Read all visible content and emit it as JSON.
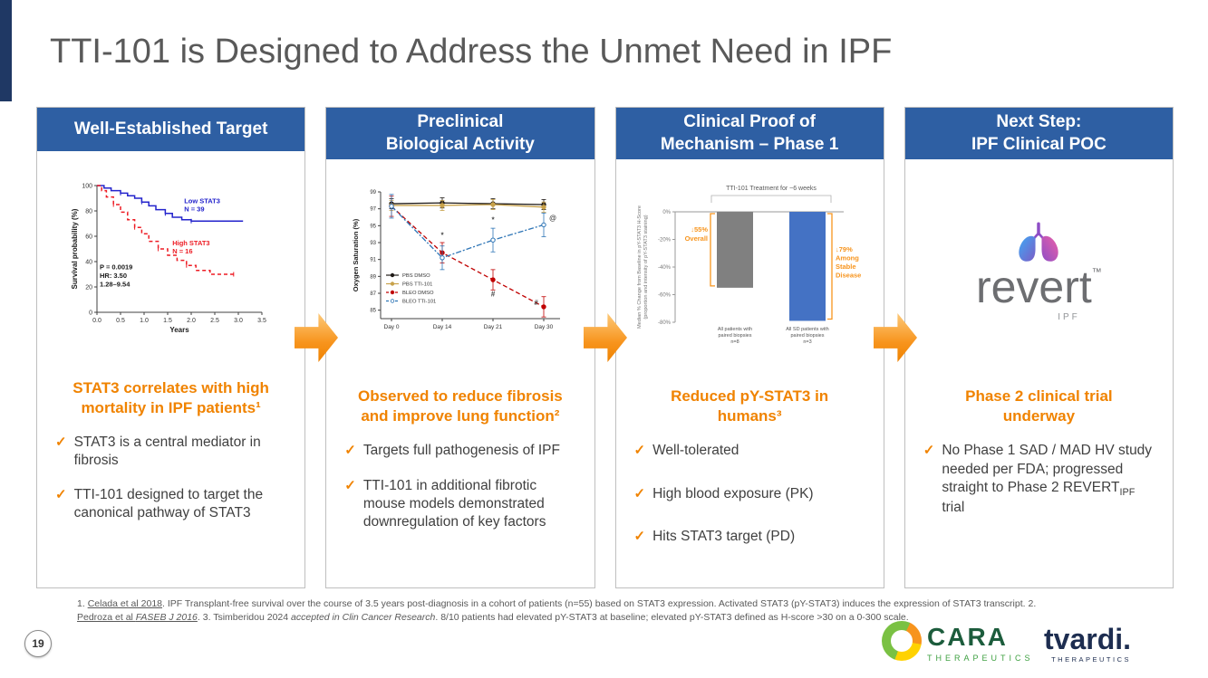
{
  "slide": {
    "title": "TTI-101 is Designed to Address the Unmet Need in IPF",
    "page_number": "19"
  },
  "icons": {
    "check": "✓"
  },
  "colors": {
    "header_blue": "#2E5FA3",
    "accent_orange": "#F08300",
    "navy_accent": "#1F3864",
    "bar_gray": "#808080",
    "bar_blue": "#4472C4"
  },
  "columns": [
    {
      "header": "Well-Established Target",
      "heading": "STAT3 correlates with high\nmortality in IPF patients¹",
      "bullets": [
        "STAT3 is a central mediator in fibrosis",
        "TTI-101 designed to target the canonical pathway of STAT3"
      ]
    },
    {
      "header": "Preclinical\nBiological Activity",
      "heading": "Observed to reduce fibrosis\nand improve lung function²",
      "bullets": [
        "Targets full pathogenesis of IPF",
        "TTI-101 in additional fibrotic mouse models demonstrated downregulation of key factors"
      ]
    },
    {
      "header": "Clinical Proof of\nMechanism – Phase 1",
      "heading": "Reduced pY-STAT3 in\nhumans³",
      "bullets": [
        "Well-tolerated",
        "High blood exposure (PK)",
        "Hits STAT3 target (PD)"
      ]
    },
    {
      "header": "Next Step:\nIPF Clinical POC",
      "heading": "Phase 2 clinical trial\nunderway",
      "bullet_rich": {
        "pre": "No Phase 1 SAD / MAD HV study needed per FDA; progressed straight to Phase 2 REVERT",
        "sub": "IPF",
        "post": " trial"
      }
    }
  ],
  "footnote": {
    "seg1": "1. ",
    "seg2": "Celada et al 2018",
    "seg3": ". IPF Transplant-free survival over the course of 3.5 years post-diagnosis in a cohort of patients (n=55) based on STAT3 expression. Activated STAT3 (pY-STAT3) induces the expression of STAT3 transcript. 2. ",
    "seg4": "Pedroza et al ",
    "seg5": "FASEB J 2016",
    "seg6": ". 3. Tsimberidou 2024 ",
    "seg7": "accepted in Clin Cancer Research",
    "seg8": ". 8/10 patients had elevated pY-STAT3 at baseline; elevated pY-STAT3 defined as H-score >30 on a 0-300 scale."
  },
  "logos": {
    "revert": {
      "name": "revert",
      "tm": "™",
      "sub": "IPF"
    },
    "cara": {
      "name": "CARA",
      "sub": "THERAPEUTICS"
    },
    "tvardi": {
      "name": "tvardi.",
      "sub": "THERAPEUTICS"
    }
  },
  "chart_data": [
    {
      "type": "line",
      "subtype": "kaplan-meier",
      "xlabel": "Years",
      "ylabel": "Survival probability (%)",
      "xlim": [
        0,
        3.5
      ],
      "ylim": [
        0,
        100
      ],
      "xticks": [
        0,
        0.5,
        1,
        1.5,
        2,
        2.5,
        3,
        3.5
      ],
      "yticks": [
        0,
        20,
        40,
        60,
        80,
        100
      ],
      "annotation": "P = 0.0019\nHR: 3.50\n1.28–9.54",
      "annotation_at": 34,
      "series": [
        {
          "name": "Low STAT3",
          "label": "Low STAT3\nN = 39",
          "color": "#2323CC",
          "dash": null,
          "label_at": [
            1.85,
            86
          ],
          "points": [
            [
              0,
              100
            ],
            [
              0.15,
              98
            ],
            [
              0.3,
              96
            ],
            [
              0.5,
              94
            ],
            [
              0.65,
              92
            ],
            [
              0.8,
              90
            ],
            [
              0.95,
              87
            ],
            [
              1.1,
              84
            ],
            [
              1.25,
              81
            ],
            [
              1.45,
              78
            ],
            [
              1.6,
              75
            ],
            [
              1.8,
              73
            ],
            [
              2.0,
              72
            ],
            [
              3.1,
              72
            ]
          ]
        },
        {
          "name": "High STAT3",
          "label": "High STAT3\nN = 16",
          "color": "#ED1C24",
          "dash": "4,3",
          "label_at": [
            1.6,
            53
          ],
          "points": [
            [
              0,
              100
            ],
            [
              0.1,
              96
            ],
            [
              0.2,
              91
            ],
            [
              0.35,
              85
            ],
            [
              0.5,
              79
            ],
            [
              0.65,
              73
            ],
            [
              0.8,
              67
            ],
            [
              0.95,
              62
            ],
            [
              1.1,
              56
            ],
            [
              1.3,
              50
            ],
            [
              1.5,
              45
            ],
            [
              1.7,
              41
            ],
            [
              1.9,
              37
            ],
            [
              2.1,
              33
            ],
            [
              2.4,
              30
            ],
            [
              2.9,
              30
            ]
          ]
        }
      ]
    },
    {
      "type": "line",
      "ylabel": "Oxygen Saturation (%)",
      "x_categories": [
        "Day 0",
        "Day 14",
        "Day 21",
        "Day 30"
      ],
      "ylim": [
        84,
        99
      ],
      "yticks": [
        85,
        87,
        89,
        91,
        93,
        95,
        97,
        99
      ],
      "legend_position": "left-middle",
      "series": [
        {
          "name": "PBS DMSO",
          "color": "#1F1A17",
          "marker": "filled",
          "dash": null,
          "err": 0.6,
          "values": [
            97.6,
            97.7,
            97.6,
            97.5
          ]
        },
        {
          "name": "PBS TTI-101",
          "color": "#C8A24B",
          "marker": "filled",
          "dash": null,
          "err": 0.6,
          "values": [
            97.4,
            97.4,
            97.5,
            97.2
          ]
        },
        {
          "name": "BLEO DMSO",
          "color": "#C00000",
          "marker": "filled",
          "dash": "5,3",
          "err": 1.2,
          "values": [
            97.3,
            91.8,
            88.6,
            85.4
          ]
        },
        {
          "name": "BLEO TTI-101",
          "color": "#2E75B6",
          "marker": "open",
          "dash": "6,2,2,2",
          "err": 1.4,
          "values": [
            97.3,
            91.2,
            93.3,
            95.1
          ]
        }
      ],
      "annotations": [
        {
          "x": 1,
          "y": 93.6,
          "text": "*"
        },
        {
          "x": 2,
          "y": 95.4,
          "text": "*"
        },
        {
          "x": 2,
          "y": 86.6,
          "text": "#"
        },
        {
          "x": 2.85,
          "y": 85.6,
          "text": "#"
        },
        {
          "x": 3.18,
          "y": 95.6,
          "text": "@"
        }
      ]
    },
    {
      "type": "bar",
      "title": "TTI-101 Treatment for ~6 weeks",
      "ylabel": "Median % Change from Baseline in pY-STAT3 H-Score\n(proportion and intensity of pY-STAT3 staining)",
      "yticks": [
        0,
        -20,
        -40,
        -60,
        -80
      ],
      "yticks_labels": [
        "0%",
        "-20%",
        "-40%",
        "-60%",
        "-80%"
      ],
      "categories": [
        "All patients with\npaired biopsies\nn=8",
        "All SD patients with\npaired biopsies\nn=3"
      ],
      "values": [
        -55,
        -79
      ],
      "bar_colors": [
        "#808080",
        "#4472C4"
      ],
      "annotations": [
        {
          "side": "left",
          "text": "↓55%\nOverall"
        },
        {
          "side": "right",
          "text": "↓79%\nAmong\nStable\nDisease"
        }
      ]
    }
  ]
}
